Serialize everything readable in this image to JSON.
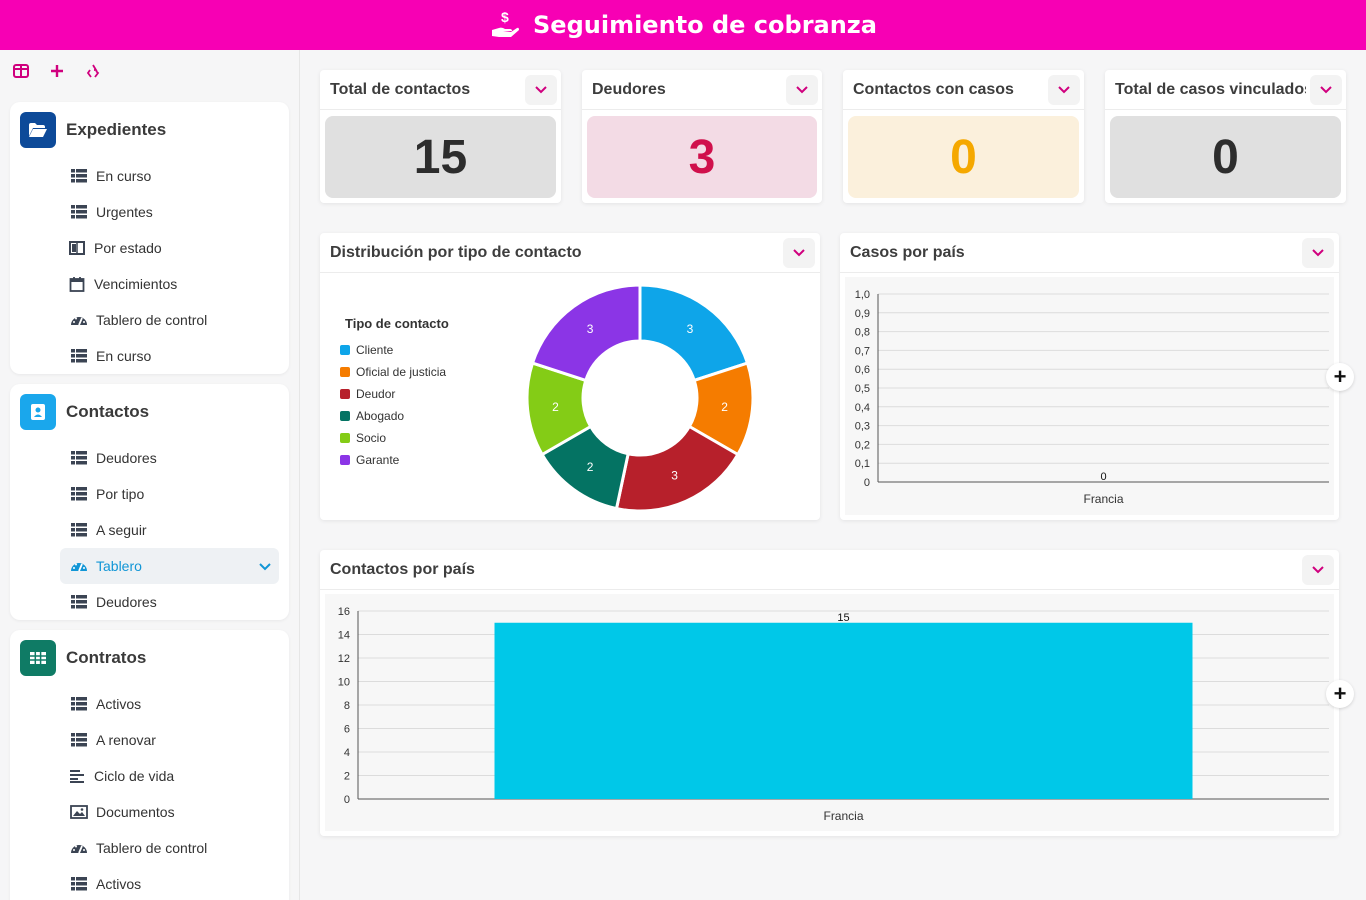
{
  "header": {
    "title": "Seguimiento de cobranza",
    "icon": "hand-coin-icon",
    "color": "#f700b4"
  },
  "sidebar": {
    "tools": [
      "layout-icon",
      "plus-icon",
      "recycle-icon"
    ],
    "groups": [
      {
        "title": "Expedientes",
        "icon": "folder-open-icon",
        "color": "#0d4a99",
        "items": [
          {
            "label": "En curso",
            "icon": "table-icon"
          },
          {
            "label": "Urgentes",
            "icon": "table-icon"
          },
          {
            "label": "Por estado",
            "icon": "kanban-icon"
          },
          {
            "label": "Vencimientos",
            "icon": "calendar-icon"
          },
          {
            "label": "Tablero de control",
            "icon": "gauge-icon"
          },
          {
            "label": "En curso",
            "icon": "table-icon"
          }
        ]
      },
      {
        "title": "Contactos",
        "icon": "contact-card-icon",
        "color": "#1aa7ec",
        "items": [
          {
            "label": "Deudores",
            "icon": "table-icon"
          },
          {
            "label": "Por tipo",
            "icon": "table-icon"
          },
          {
            "label": "A seguir",
            "icon": "table-icon"
          },
          {
            "label": "Tablero",
            "icon": "gauge-icon",
            "active": true
          },
          {
            "label": "Deudores",
            "icon": "table-icon"
          }
        ]
      },
      {
        "title": "Contratos",
        "icon": "grid-icon",
        "color": "#0f7b65",
        "items": [
          {
            "label": "Activos",
            "icon": "table-icon"
          },
          {
            "label": "A renovar",
            "icon": "table-icon"
          },
          {
            "label": "Ciclo de vida",
            "icon": "timeline-icon"
          },
          {
            "label": "Documentos",
            "icon": "image-icon"
          },
          {
            "label": "Tablero de control",
            "icon": "gauge-icon"
          },
          {
            "label": "Activos",
            "icon": "table-icon"
          }
        ]
      }
    ]
  },
  "kpis": [
    {
      "title": "Total de contactos",
      "value": "15",
      "bg": "#e0e0e0",
      "fg": "#2d2d2d"
    },
    {
      "title": "Deudores",
      "value": "3",
      "bg": "#f3dbe5",
      "fg": "#d0104c"
    },
    {
      "title": "Contactos con casos",
      "value": "0",
      "bg": "#fbf0dc",
      "fg": "#f5a800"
    },
    {
      "title": "Total de casos vinculados",
      "value": "0",
      "bg": "#e0e0e0",
      "fg": "#2d2d2d"
    }
  ],
  "chart_data": [
    {
      "type": "pie",
      "title": "Distribución por tipo de contacto",
      "legend_title": "Tipo de contacto",
      "legend_position": "left",
      "donut": true,
      "slices": [
        {
          "label": "Cliente",
          "value": 3,
          "color": "#0ea5e9"
        },
        {
          "label": "Oficial de justicia",
          "value": 2,
          "color": "#f57c00"
        },
        {
          "label": "Deudor",
          "value": 3,
          "color": "#b7202b"
        },
        {
          "label": "Abogado",
          "value": 2,
          "color": "#047363"
        },
        {
          "label": "Socio",
          "value": 2,
          "color": "#84cc16"
        },
        {
          "label": "Garante",
          "value": 3,
          "color": "#8b35e6"
        }
      ]
    },
    {
      "type": "bar",
      "title": "Casos por país",
      "categories": [
        "Francia"
      ],
      "values": [
        0
      ],
      "data_labels": [
        "0"
      ],
      "ylim": [
        0,
        1
      ],
      "yticks": [
        "0",
        "0,1",
        "0,2",
        "0,3",
        "0,4",
        "0,5",
        "0,6",
        "0,7",
        "0,8",
        "0,9",
        "1,0"
      ],
      "grid": true,
      "color": "#00c8e8"
    },
    {
      "type": "bar",
      "title": "Contactos por país",
      "categories": [
        "Francia"
      ],
      "values": [
        15
      ],
      "data_labels": [
        "15"
      ],
      "ylim": [
        0,
        16
      ],
      "yticks": [
        "0",
        "2",
        "4",
        "6",
        "8",
        "10",
        "12",
        "14",
        "16"
      ],
      "grid": true,
      "color": "#00c8e8"
    }
  ]
}
